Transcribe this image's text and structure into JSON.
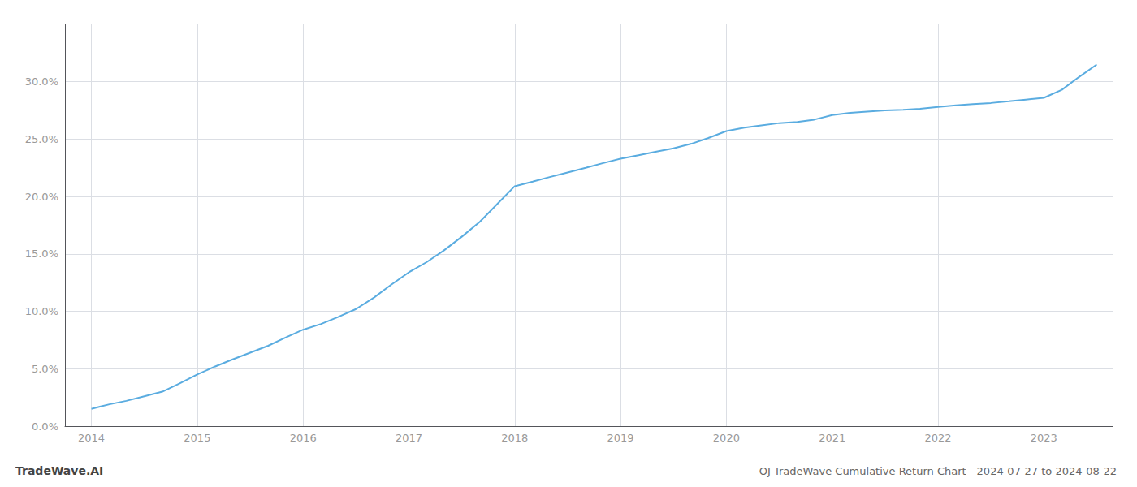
{
  "chart_data": {
    "type": "line",
    "title": "OJ TradeWave Cumulative Return Chart - 2024-07-27 to 2024-08-22",
    "annotations": [
      "TradeWave.AI"
    ],
    "color": "#5aace0",
    "grid": true,
    "x": [
      2014.0,
      2014.08,
      2014.17,
      2014.33,
      2014.5,
      2014.67,
      2014.83,
      2015.0,
      2015.17,
      2015.33,
      2015.5,
      2015.67,
      2015.83,
      2016.0,
      2016.17,
      2016.33,
      2016.5,
      2016.67,
      2016.83,
      2017.0,
      2017.17,
      2017.33,
      2017.5,
      2017.67,
      2017.83,
      2018.0,
      2018.17,
      2018.33,
      2018.5,
      2018.67,
      2018.83,
      2019.0,
      2019.17,
      2019.33,
      2019.5,
      2019.67,
      2019.83,
      2020.0,
      2020.17,
      2020.33,
      2020.5,
      2020.67,
      2020.83,
      2021.0,
      2021.17,
      2021.33,
      2021.5,
      2021.67,
      2021.83,
      2022.0,
      2022.17,
      2022.33,
      2022.5,
      2022.67,
      2022.83,
      2023.0,
      2023.17,
      2023.33,
      2023.5
    ],
    "values": [
      1.5,
      1.7,
      1.9,
      2.2,
      2.6,
      3.0,
      3.7,
      4.5,
      5.2,
      5.8,
      6.4,
      7.0,
      7.7,
      8.4,
      8.9,
      9.5,
      10.2,
      11.2,
      12.3,
      13.4,
      14.3,
      15.3,
      16.5,
      17.8,
      19.3,
      20.9,
      21.3,
      21.7,
      22.1,
      22.5,
      22.9,
      23.3,
      23.6,
      23.9,
      24.2,
      24.6,
      25.1,
      25.7,
      26.0,
      26.2,
      26.4,
      26.5,
      26.7,
      27.1,
      27.3,
      27.4,
      27.5,
      27.55,
      27.65,
      27.8,
      27.95,
      28.05,
      28.15,
      28.3,
      28.45,
      28.6,
      29.3,
      30.4,
      31.5
    ],
    "xlim": [
      2013.75,
      2023.65
    ],
    "xticks": [
      2014,
      2015,
      2016,
      2017,
      2018,
      2019,
      2020,
      2021,
      2022,
      2023
    ],
    "ylim": [
      0.0,
      35.0
    ],
    "yticks": [
      {
        "value": 0.0,
        "label": "0.0%"
      },
      {
        "value": 5.0,
        "label": "5.0%"
      },
      {
        "value": 10.0,
        "label": "10.0%"
      },
      {
        "value": 15.0,
        "label": "15.0%"
      },
      {
        "value": 20.0,
        "label": "20.0%"
      },
      {
        "value": 25.0,
        "label": "25.0%"
      },
      {
        "value": 30.0,
        "label": "30.0%"
      }
    ]
  }
}
